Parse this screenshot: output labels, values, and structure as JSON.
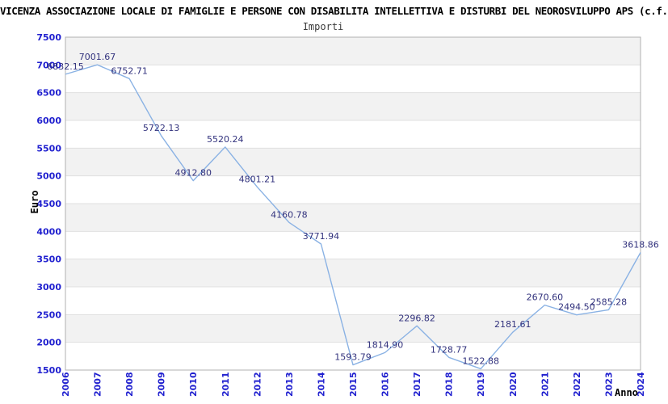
{
  "header": {
    "title": "VICENZA ASSOCIAZIONE LOCALE DI FAMIGLIE E PERSONE CON DISABILITA INTELLETTIVA E DISTURBI DEL NEOROSVILUPPO APS (c.f.",
    "subtitle": "Importi"
  },
  "chart_data": {
    "type": "line",
    "title": "Importi",
    "xlabel": "Anno",
    "ylabel": "Euro",
    "x": [
      2006,
      2007,
      2008,
      2009,
      2010,
      2011,
      2012,
      2013,
      2014,
      2015,
      2016,
      2017,
      2018,
      2019,
      2020,
      2021,
      2022,
      2023,
      2024
    ],
    "values": [
      6832.15,
      7001.67,
      6752.71,
      5722.13,
      4912.8,
      5520.24,
      4801.21,
      4160.78,
      3771.94,
      1593.79,
      1814.9,
      2296.82,
      1728.77,
      1522.88,
      2181.61,
      2670.6,
      2494.5,
      2585.28,
      3618.86
    ],
    "point_labels": [
      "6832.15",
      "7001.67",
      "6752.71",
      "5722.13",
      "4912.80",
      "5520.24",
      "4801.21",
      "4160.78",
      "3771.94",
      "1593.79",
      "1814.90",
      "2296.82",
      "1728.77",
      "1522.88",
      "2181.61",
      "2670.60",
      "2494.50",
      "2585.28",
      "3618.86"
    ],
    "ylim": [
      1500,
      7500
    ],
    "ytick_step": 500,
    "ytick_labels": [
      "1500",
      "2000",
      "2500",
      "3000",
      "3500",
      "4000",
      "4500",
      "5000",
      "5500",
      "6000",
      "6500",
      "7000",
      "7500"
    ],
    "legend": "none",
    "grid": "horizontal-bands",
    "colors": {
      "line": "#8ab2e4",
      "tick_label": "#2020cf",
      "value_label": "#32327d",
      "band": "#f2f2f2",
      "grid_line": "#e0e0e0",
      "plot_border": "#b0b0b0",
      "title": "#000000",
      "subtitle": "#3c3c3c"
    }
  }
}
